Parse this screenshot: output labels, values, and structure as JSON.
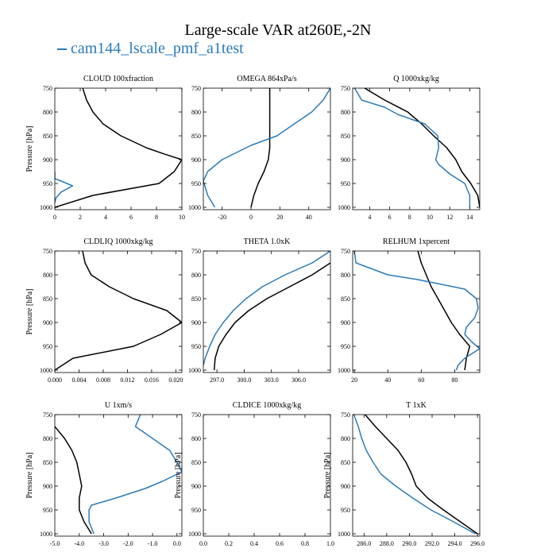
{
  "title": "Large-scale VAR at260E,-2N",
  "legend": {
    "entries": [
      {
        "label": "cam144_lscale_pmf_a1test",
        "color": "#2b7bb9"
      }
    ]
  },
  "colors": {
    "case": "#2b7bb9",
    "reference": "#000000"
  },
  "chart_data": [
    {
      "type": "line",
      "title": "CLOUD  100xfraction",
      "ylabel": "Pressure [hPa]",
      "xlim": [
        0,
        10
      ],
      "ylim": [
        1005,
        750
      ],
      "y_inverted": true,
      "xticks": [
        "0",
        "2",
        "4",
        "6",
        "8",
        "10"
      ],
      "xtick_values": [
        0,
        2,
        4,
        6,
        8,
        10
      ],
      "yticks": [
        "750",
        "800",
        "850",
        "900",
        "950",
        "1000"
      ],
      "ytick_values": [
        750,
        800,
        850,
        900,
        950,
        1000
      ],
      "series": [
        {
          "color": "#000000",
          "points": [
            [
              2.2,
              750
            ],
            [
              2.5,
              775
            ],
            [
              3.0,
              800
            ],
            [
              3.8,
              825
            ],
            [
              5.2,
              850
            ],
            [
              7.2,
              875
            ],
            [
              8.6,
              888
            ],
            [
              10.0,
              900
            ],
            [
              9.4,
              925
            ],
            [
              8.2,
              950
            ],
            [
              3.0,
              975
            ],
            [
              0.0,
              1000
            ]
          ]
        },
        {
          "color": "#2b7bb9",
          "points": [
            [
              0,
              925
            ],
            [
              0,
              940
            ],
            [
              0.5,
              945
            ],
            [
              1.4,
              955
            ],
            [
              0.5,
              968
            ],
            [
              0.1,
              980
            ],
            [
              0,
              990
            ]
          ]
        }
      ]
    },
    {
      "type": "line",
      "title": "OMEGA  864xPa/s",
      "ylabel": "",
      "xlim": [
        -33,
        55
      ],
      "ylim": [
        1005,
        750
      ],
      "y_inverted": true,
      "xticks": [
        "-20",
        "0",
        "20",
        "40"
      ],
      "xtick_values": [
        -20,
        0,
        20,
        40
      ],
      "yticks": [
        "750",
        "800",
        "850",
        "900",
        "950",
        "1000"
      ],
      "ytick_values": [
        750,
        800,
        850,
        900,
        950,
        1000
      ],
      "series": [
        {
          "color": "#000000",
          "points": [
            [
              13,
              750
            ],
            [
              13,
              800
            ],
            [
              13,
              850
            ],
            [
              13,
              875
            ],
            [
              12,
              900
            ],
            [
              9,
              925
            ],
            [
              5,
              950
            ],
            [
              2,
              975
            ],
            [
              0,
              1000
            ]
          ]
        },
        {
          "color": "#2b7bb9",
          "points": [
            [
              55,
              750
            ],
            [
              50,
              775
            ],
            [
              42,
              800
            ],
            [
              30,
              825
            ],
            [
              18,
              850
            ],
            [
              0,
              870
            ],
            [
              -20,
              900
            ],
            [
              -30,
              925
            ],
            [
              -33,
              945
            ],
            [
              -30,
              975
            ],
            [
              -25,
              1000
            ]
          ]
        }
      ]
    },
    {
      "type": "line",
      "title": "Q  1000xkg/kg",
      "ylabel": "",
      "xlim": [
        2.3,
        15
      ],
      "ylim": [
        1005,
        750
      ],
      "y_inverted": true,
      "xticks": [
        "4",
        "6",
        "8",
        "10",
        "12",
        "14"
      ],
      "xtick_values": [
        4,
        6,
        8,
        10,
        12,
        14
      ],
      "yticks": [
        "750",
        "800",
        "850",
        "900",
        "950",
        "1000"
      ],
      "ytick_values": [
        750,
        800,
        850,
        900,
        950,
        1000
      ],
      "series": [
        {
          "color": "#000000",
          "points": [
            [
              3.5,
              750
            ],
            [
              5.5,
              775
            ],
            [
              7.8,
              800
            ],
            [
              9.2,
              825
            ],
            [
              10.4,
              850
            ],
            [
              11.7,
              875
            ],
            [
              12.6,
              900
            ],
            [
              13.2,
              925
            ],
            [
              14.1,
              950
            ],
            [
              14.8,
              975
            ],
            [
              15,
              1000
            ]
          ]
        },
        {
          "color": "#2b7bb9",
          "points": [
            [
              2.5,
              750
            ],
            [
              3.2,
              775
            ],
            [
              5.5,
              790
            ],
            [
              6.8,
              805
            ],
            [
              9.5,
              825
            ],
            [
              10.8,
              850
            ],
            [
              10.9,
              875
            ],
            [
              10.6,
              900
            ],
            [
              10.9,
              910
            ],
            [
              12,
              930
            ],
            [
              13.5,
              950
            ],
            [
              14,
              975
            ],
            [
              14,
              1000
            ]
          ]
        }
      ]
    },
    {
      "type": "line",
      "title": "CLDLIQ  1000xkg/kg",
      "ylabel": "Pressure [hPa]",
      "xlim": [
        0,
        0.021
      ],
      "ylim": [
        1005,
        750
      ],
      "y_inverted": true,
      "xticks": [
        "0.000",
        "0.004",
        "0.008",
        "0.012",
        "0.016",
        "0.020"
      ],
      "xtick_values": [
        0,
        0.004,
        0.008,
        0.012,
        0.016,
        0.02
      ],
      "yticks": [
        "750",
        "800",
        "850",
        "900",
        "950",
        "1000"
      ],
      "ytick_values": [
        750,
        800,
        850,
        900,
        950,
        1000
      ],
      "series": [
        {
          "color": "#000000",
          "points": [
            [
              0.0046,
              750
            ],
            [
              0.005,
              775
            ],
            [
              0.006,
              800
            ],
            [
              0.009,
              825
            ],
            [
              0.013,
              850
            ],
            [
              0.0185,
              875
            ],
            [
              0.021,
              900
            ],
            [
              0.0175,
              925
            ],
            [
              0.013,
              950
            ],
            [
              0.003,
              975
            ],
            [
              0.0,
              1000
            ]
          ]
        }
      ]
    },
    {
      "type": "line",
      "title": "THETA  1.0xK",
      "ylabel": "",
      "xlim": [
        295.5,
        309.5
      ],
      "ylim": [
        1005,
        750
      ],
      "y_inverted": true,
      "xticks": [
        "297.0",
        "300.0",
        "303.0",
        "306.0"
      ],
      "xtick_values": [
        297,
        300,
        303,
        306
      ],
      "yticks": [
        "750",
        "800",
        "850",
        "900",
        "950",
        "1000"
      ],
      "ytick_values": [
        750,
        800,
        850,
        900,
        950,
        1000
      ],
      "series": [
        {
          "color": "#000000",
          "points": [
            [
              309.5,
              775
            ],
            [
              307.5,
              800
            ],
            [
              305.0,
              825
            ],
            [
              302.5,
              850
            ],
            [
              300.5,
              875
            ],
            [
              299.0,
              900
            ],
            [
              298.0,
              925
            ],
            [
              297.2,
              950
            ],
            [
              296.8,
              975
            ],
            [
              296.7,
              1000
            ]
          ]
        },
        {
          "color": "#2b7bb9",
          "points": [
            [
              309.5,
              750
            ],
            [
              307.5,
              775
            ],
            [
              304.5,
              800
            ],
            [
              302.0,
              825
            ],
            [
              300.2,
              850
            ],
            [
              298.8,
              875
            ],
            [
              297.7,
              900
            ],
            [
              296.8,
              925
            ],
            [
              296.2,
              950
            ],
            [
              295.7,
              975
            ],
            [
              295.5,
              990
            ]
          ]
        }
      ]
    },
    {
      "type": "line",
      "title": "RELHUM  1xpercent",
      "ylabel": "",
      "xlim": [
        19,
        95
      ],
      "ylim": [
        1005,
        750
      ],
      "y_inverted": true,
      "xticks": [
        "20",
        "40",
        "60",
        "80"
      ],
      "xtick_values": [
        20,
        40,
        60,
        80
      ],
      "yticks": [
        "750",
        "800",
        "850",
        "900",
        "950",
        "1000"
      ],
      "ytick_values": [
        750,
        800,
        850,
        900,
        950,
        1000
      ],
      "series": [
        {
          "color": "#000000",
          "points": [
            [
              58,
              750
            ],
            [
              60,
              775
            ],
            [
              63,
              800
            ],
            [
              66,
              825
            ],
            [
              70,
              850
            ],
            [
              74,
              875
            ],
            [
              78,
              900
            ],
            [
              83,
              925
            ],
            [
              89,
              950
            ],
            [
              87,
              975
            ],
            [
              86,
              1000
            ]
          ]
        },
        {
          "color": "#2b7bb9",
          "points": [
            [
              20,
              750
            ],
            [
              21,
              775
            ],
            [
              40,
              800
            ],
            [
              58,
              810
            ],
            [
              86,
              830
            ],
            [
              93,
              850
            ],
            [
              94,
              870
            ],
            [
              92,
              890
            ],
            [
              87,
              910
            ],
            [
              86,
              925
            ],
            [
              90,
              940
            ],
            [
              95,
              955
            ],
            [
              86,
              975
            ],
            [
              82,
              990
            ],
            [
              81,
              1000
            ]
          ]
        }
      ]
    },
    {
      "type": "line",
      "title": "U  1xm/s",
      "ylabel": "Pressure [hPa]",
      "xlim": [
        -5,
        0.2
      ],
      "ylim": [
        1005,
        750
      ],
      "y_inverted": true,
      "xticks": [
        "-5.0",
        "-4.0",
        "-3.0",
        "-2.0",
        "-1.0",
        "0.0"
      ],
      "xtick_values": [
        -5,
        -4,
        -3,
        -2,
        -1,
        0
      ],
      "yticks": [
        "750",
        "800",
        "850",
        "900",
        "950",
        "1000"
      ],
      "ytick_values": [
        750,
        800,
        850,
        900,
        950,
        1000
      ],
      "series": [
        {
          "color": "#000000",
          "points": [
            [
              -5.0,
              775
            ],
            [
              -4.6,
              800
            ],
            [
              -4.3,
              825
            ],
            [
              -4.1,
              850
            ],
            [
              -4.0,
              875
            ],
            [
              -3.9,
              900
            ],
            [
              -4.0,
              925
            ],
            [
              -4.0,
              950
            ],
            [
              -3.8,
              975
            ],
            [
              -3.5,
              1000
            ]
          ]
        },
        {
          "color": "#2b7bb9",
          "points": [
            [
              -1.5,
              750
            ],
            [
              -1.7,
              775
            ],
            [
              -1.0,
              800
            ],
            [
              -0.3,
              825
            ],
            [
              0.0,
              850
            ],
            [
              0.2,
              870
            ],
            [
              -0.6,
              890
            ],
            [
              -1.3,
              905
            ],
            [
              -2.5,
              925
            ],
            [
              -3.5,
              940
            ],
            [
              -3.6,
              950
            ],
            [
              -3.6,
              975
            ],
            [
              -3.4,
              1000
            ]
          ]
        }
      ]
    },
    {
      "type": "line",
      "title": "CLDICE  1000xkg/kg",
      "ylabel": "Pressure [hPa]",
      "xlim": [
        0,
        1
      ],
      "ylim": [
        1005,
        750
      ],
      "y_inverted": true,
      "xticks": [
        "0.0",
        "0.2",
        "0.4",
        "0.6",
        "0.8",
        "1.0"
      ],
      "xtick_values": [
        0,
        0.2,
        0.4,
        0.6,
        0.8,
        1.0
      ],
      "yticks": [
        "750",
        "800",
        "850",
        "900",
        "950",
        "1000"
      ],
      "ytick_values": [
        750,
        800,
        850,
        900,
        950,
        1000
      ],
      "series": []
    },
    {
      "type": "line",
      "title": "T  1xK",
      "ylabel": "Pressure [hPa]",
      "xlim": [
        285,
        296.2
      ],
      "ylim": [
        1005,
        750
      ],
      "y_inverted": true,
      "xticks": [
        "286.0",
        "288.0",
        "290.0",
        "292.0",
        "294.0",
        "296.0"
      ],
      "xtick_values": [
        286,
        288,
        290,
        292,
        294,
        296
      ],
      "yticks": [
        "750",
        "800",
        "850",
        "900",
        "950",
        "1000"
      ],
      "ytick_values": [
        750,
        800,
        850,
        900,
        950,
        1000
      ],
      "series": [
        {
          "color": "#000000",
          "points": [
            [
              286.1,
              750
            ],
            [
              287.0,
              775
            ],
            [
              288.0,
              800
            ],
            [
              289.0,
              825
            ],
            [
              289.7,
              850
            ],
            [
              290.2,
              875
            ],
            [
              290.6,
              900
            ],
            [
              291.6,
              925
            ],
            [
              293.0,
              950
            ],
            [
              294.5,
              975
            ],
            [
              296.0,
              1000
            ]
          ]
        },
        {
          "color": "#2b7bb9",
          "points": [
            [
              285.1,
              750
            ],
            [
              285.5,
              775
            ],
            [
              285.8,
              800
            ],
            [
              286.2,
              825
            ],
            [
              286.8,
              850
            ],
            [
              287.5,
              875
            ],
            [
              288.8,
              900
            ],
            [
              290.3,
              925
            ],
            [
              291.9,
              950
            ],
            [
              293.9,
              975
            ],
            [
              295.8,
              1000
            ]
          ]
        }
      ]
    }
  ]
}
